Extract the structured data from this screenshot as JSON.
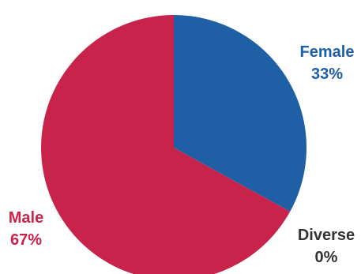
{
  "chart_data": {
    "type": "pie",
    "title": "",
    "slices": [
      {
        "label": "Female",
        "value": 33,
        "display": "33%",
        "color": "#1f5fa6"
      },
      {
        "label": "Diverse",
        "value": 0,
        "display": "0%",
        "color": "#333333"
      },
      {
        "label": "Male",
        "value": 67,
        "display": "67%",
        "color": "#c8234a"
      }
    ]
  }
}
